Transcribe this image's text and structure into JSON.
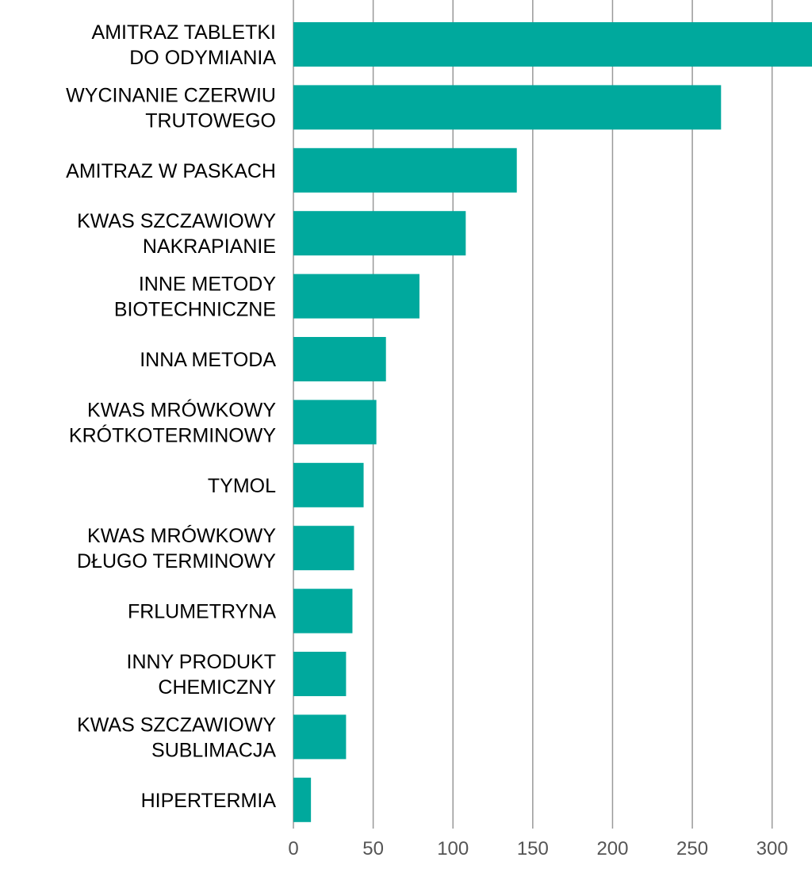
{
  "chart_data": {
    "type": "bar",
    "orientation": "horizontal",
    "categories": [
      [
        "AMITRAZ TABLETKI",
        "DO ODYMIANIA"
      ],
      [
        "WYCINANIE CZERWIU",
        "TRUTOWEGO"
      ],
      [
        "AMITRAZ W PASKACH"
      ],
      [
        "KWAS SZCZAWIOWY",
        "NAKRAPIANIE"
      ],
      [
        "INNE METODY",
        "BIOTECHNICZNE"
      ],
      [
        "INNA METODA"
      ],
      [
        "KWAS MRÓWKOWY",
        "KRÓTKOTERMINOWY"
      ],
      [
        "TYMOL"
      ],
      [
        "KWAS MRÓWKOWY",
        "DŁUGO TERMINOWY"
      ],
      [
        "FRLUMETRYNA"
      ],
      [
        "INNY PRODUKT",
        "CHEMICZNY"
      ],
      [
        "KWAS SZCZAWIOWY",
        "SUBLIMACJA"
      ],
      [
        "HIPERTERMIA"
      ]
    ],
    "values": [
      325,
      268,
      140,
      108,
      79,
      58,
      52,
      44,
      38,
      37,
      33,
      33,
      11
    ],
    "xticks": [
      0,
      50,
      100,
      150,
      200,
      250,
      300
    ],
    "xlim": [
      0,
      325
    ],
    "grid": true,
    "bar_color": "#00A99D"
  }
}
